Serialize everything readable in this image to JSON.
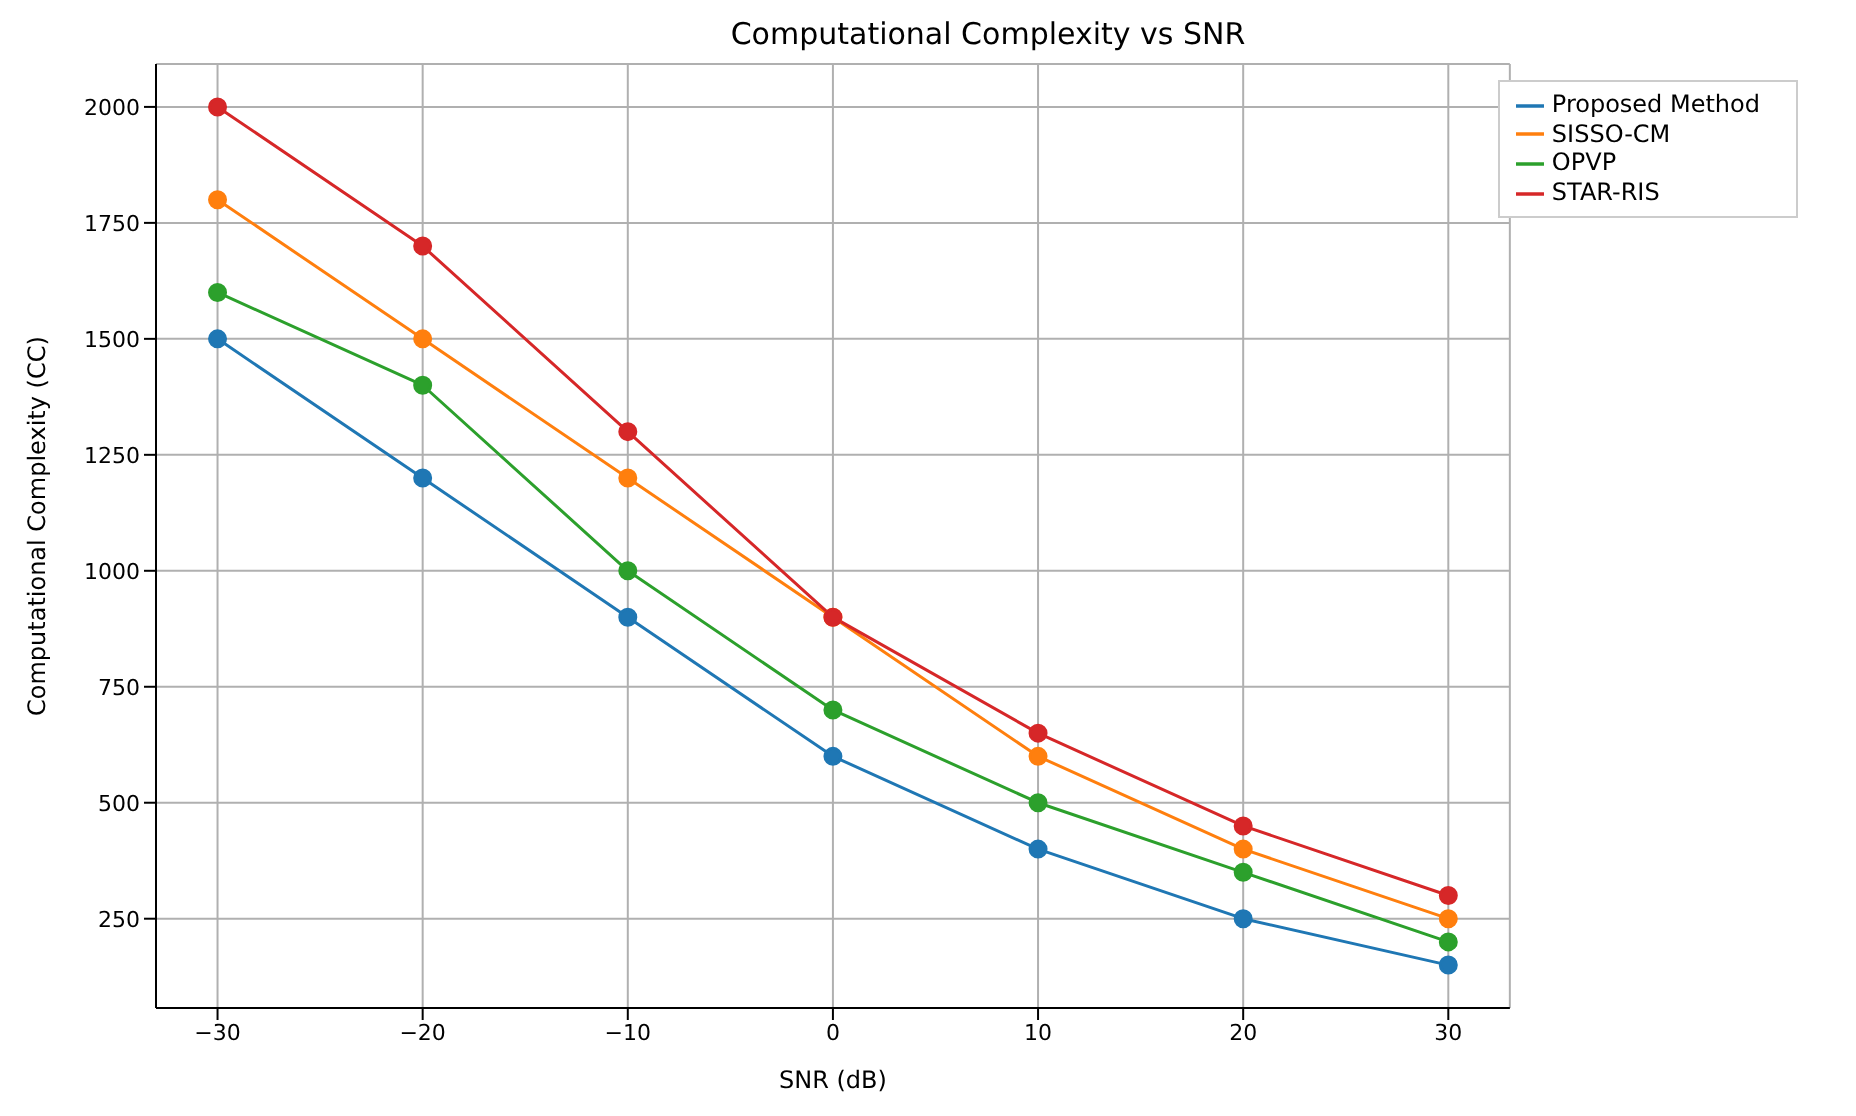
{
  "chart_data": {
    "type": "line",
    "title": "Computational Complexity vs SNR",
    "xlabel": "SNR (dB)",
    "ylabel": "Computational Complexity (CC)",
    "x": [
      -30,
      -20,
      -10,
      0,
      10,
      20,
      30
    ],
    "series": [
      {
        "name": "Proposed Method",
        "color": "#1f77b4",
        "values": [
          1500,
          1200,
          900,
          600,
          400,
          250,
          150
        ]
      },
      {
        "name": "SISSO-CM",
        "color": "#ff7f0e",
        "values": [
          1800,
          1500,
          1200,
          900,
          600,
          400,
          250
        ]
      },
      {
        "name": "OPVP",
        "color": "#2ca02c",
        "values": [
          1600,
          1400,
          1000,
          700,
          500,
          350,
          200
        ]
      },
      {
        "name": "STAR-RIS",
        "color": "#d62728",
        "values": [
          2000,
          1700,
          1300,
          900,
          650,
          450,
          300
        ]
      }
    ],
    "xlim": [
      -33,
      33
    ],
    "xticks": [
      -30,
      -20,
      -10,
      0,
      10,
      20,
      30
    ],
    "ylim": [
      57.5,
      2092.5
    ],
    "yticks": [
      250,
      500,
      750,
      1000,
      1250,
      1500,
      1750,
      2000
    ],
    "grid": true,
    "legend": "top right",
    "marker": "circle",
    "line_style": "solid"
  }
}
